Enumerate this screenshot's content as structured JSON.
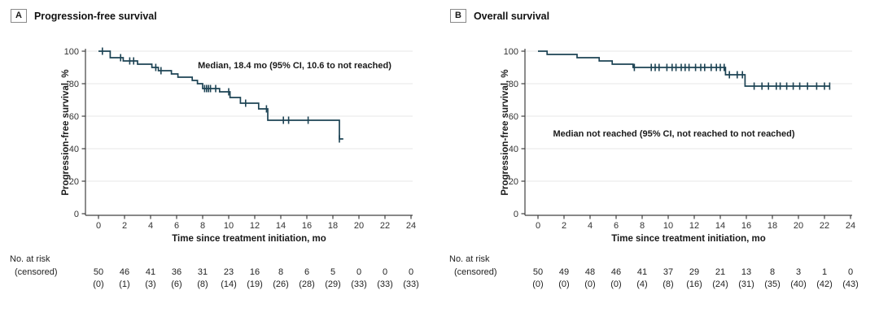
{
  "chart_data": [
    {
      "type": "line",
      "subtype": "kaplan-meier",
      "panel_label": "A",
      "title": "Progression-free survival",
      "annotation": "Median, 18.4 mo (95% CI, 10.6 to not reached)",
      "xlabel": "Time since treatment initiation, mo",
      "ylabel": "Progression-free survival, %",
      "xlim": [
        0,
        24
      ],
      "ylim": [
        0,
        100
      ],
      "xticks": [
        0,
        2,
        4,
        6,
        8,
        10,
        12,
        14,
        16,
        18,
        20,
        22,
        24
      ],
      "yticks": [
        0,
        20,
        40,
        60,
        80,
        100
      ],
      "grid": true,
      "line_color": "#1d4354",
      "steps": [
        [
          0,
          100
        ],
        [
          0.9,
          96
        ],
        [
          1.9,
          94
        ],
        [
          3.0,
          92
        ],
        [
          4.1,
          90
        ],
        [
          4.6,
          88
        ],
        [
          5.6,
          86
        ],
        [
          6.1,
          84
        ],
        [
          7.2,
          82
        ],
        [
          7.6,
          80
        ],
        [
          8.0,
          77
        ],
        [
          9.3,
          75
        ],
        [
          10.1,
          71.5
        ],
        [
          10.9,
          68
        ],
        [
          12.3,
          64.5
        ],
        [
          13.0,
          57.5
        ],
        [
          18.5,
          46
        ]
      ],
      "curve_end": 18.8,
      "censor_marks": [
        [
          0.3,
          100
        ],
        [
          1.7,
          96
        ],
        [
          2.4,
          94
        ],
        [
          2.7,
          94
        ],
        [
          4.4,
          90
        ],
        [
          4.8,
          88
        ],
        [
          8.15,
          77
        ],
        [
          8.3,
          77
        ],
        [
          8.45,
          77
        ],
        [
          8.6,
          77
        ],
        [
          9.0,
          77
        ],
        [
          10.0,
          75
        ],
        [
          11.3,
          68
        ],
        [
          12.9,
          64.5
        ],
        [
          14.2,
          57.5
        ],
        [
          14.6,
          57.5
        ],
        [
          16.1,
          57.5
        ],
        [
          18.5,
          46
        ]
      ],
      "risk_table": {
        "row1_label": "No. at risk",
        "row2_label": "(censored)",
        "at_risk": [
          50,
          46,
          41,
          36,
          31,
          23,
          16,
          8,
          6,
          5,
          0,
          0,
          0
        ],
        "censored": [
          0,
          1,
          3,
          6,
          8,
          14,
          19,
          26,
          28,
          29,
          33,
          33,
          33
        ]
      }
    },
    {
      "type": "line",
      "subtype": "kaplan-meier",
      "panel_label": "B",
      "title": "Overall survival",
      "annotation": "Median not reached (95% CI, not reached to not reached)",
      "xlabel": "Time since treatment initiation, mo",
      "ylabel": "Progression-free survival, %",
      "xlim": [
        0,
        24
      ],
      "ylim": [
        0,
        100
      ],
      "xticks": [
        0,
        2,
        4,
        6,
        8,
        10,
        12,
        14,
        16,
        18,
        20,
        22,
        24
      ],
      "yticks": [
        0,
        20,
        40,
        60,
        80,
        100
      ],
      "grid": true,
      "line_color": "#1d4354",
      "steps": [
        [
          0,
          100
        ],
        [
          0.7,
          98
        ],
        [
          3.0,
          96
        ],
        [
          4.7,
          94
        ],
        [
          5.7,
          92
        ],
        [
          7.3,
          90
        ],
        [
          14.4,
          85.5
        ],
        [
          15.9,
          78.5
        ]
      ],
      "curve_end": 22.4,
      "censor_marks": [
        [
          7.4,
          90
        ],
        [
          8.7,
          90
        ],
        [
          9.0,
          90
        ],
        [
          9.3,
          90
        ],
        [
          9.9,
          90
        ],
        [
          10.3,
          90
        ],
        [
          10.6,
          90
        ],
        [
          11.0,
          90
        ],
        [
          11.3,
          90
        ],
        [
          11.6,
          90
        ],
        [
          12.1,
          90
        ],
        [
          12.5,
          90
        ],
        [
          12.8,
          90
        ],
        [
          13.3,
          90
        ],
        [
          13.7,
          90
        ],
        [
          14.0,
          90
        ],
        [
          14.3,
          90
        ],
        [
          14.7,
          85.5
        ],
        [
          15.3,
          85.5
        ],
        [
          15.7,
          85.5
        ],
        [
          16.6,
          78.5
        ],
        [
          17.2,
          78.5
        ],
        [
          17.7,
          78.5
        ],
        [
          18.3,
          78.5
        ],
        [
          18.6,
          78.5
        ],
        [
          19.1,
          78.5
        ],
        [
          19.6,
          78.5
        ],
        [
          20.1,
          78.5
        ],
        [
          20.7,
          78.5
        ],
        [
          21.4,
          78.5
        ],
        [
          22.0,
          78.5
        ],
        [
          22.4,
          78.5
        ]
      ],
      "risk_table": {
        "row1_label": "No. at risk",
        "row2_label": "(censored)",
        "at_risk": [
          50,
          49,
          48,
          46,
          41,
          37,
          29,
          21,
          13,
          8,
          3,
          1,
          0
        ],
        "censored": [
          0,
          0,
          0,
          0,
          4,
          8,
          16,
          24,
          31,
          35,
          40,
          42,
          43
        ]
      }
    }
  ]
}
